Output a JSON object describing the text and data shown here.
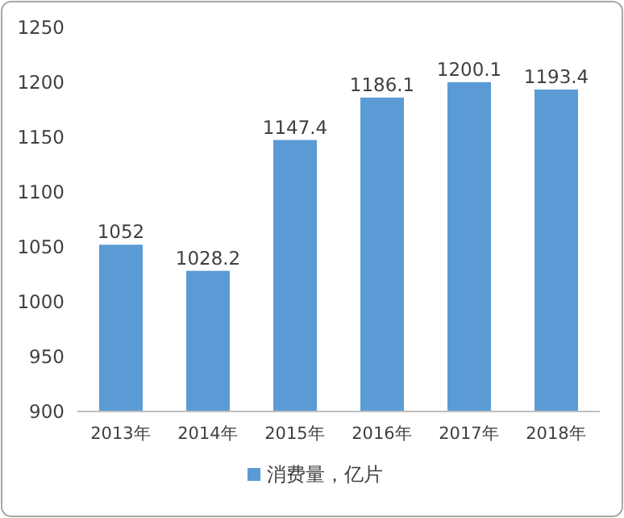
{
  "chart_data": {
    "type": "bar",
    "categories": [
      "2013年",
      "2014年",
      "2015年",
      "2016年",
      "2017年",
      "2018年"
    ],
    "series": [
      {
        "name": "消费量，亿片",
        "color": "#5b9bd5",
        "values": [
          1052,
          1028.2,
          1147.4,
          1186.1,
          1200.1,
          1193.4
        ]
      }
    ],
    "ylim": [
      900,
      1250
    ],
    "yticks": [
      900,
      950,
      1000,
      1050,
      1100,
      1150,
      1200,
      1250
    ],
    "data_labels": true,
    "legend": "bottom"
  }
}
